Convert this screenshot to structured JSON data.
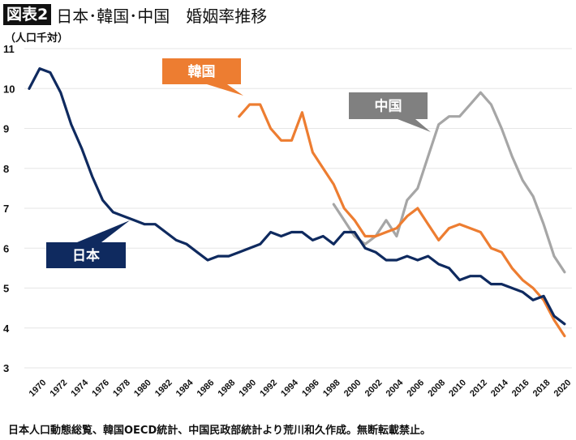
{
  "header": {
    "badge": "図表2",
    "title": "日本･韓国･中国　婚姻率推移"
  },
  "unit_label": "（人口千対）",
  "source": "日本人口動態総覧、韓国OECD統計、中国民政部統計より荒川和久作成。無断転載禁止。",
  "colors": {
    "japan": "#0f2a5f",
    "korea": "#ed7d31",
    "china": "#a6a6a6",
    "china_callout": "#808080",
    "grid": "#e6e6e6"
  },
  "chart_data": {
    "type": "line",
    "title": "日本･韓国･中国　婚姻率推移",
    "xlabel": "",
    "ylabel": "（人口千対）",
    "ylim": [
      3,
      11
    ],
    "yticks": [
      3,
      4,
      5,
      6,
      7,
      8,
      9,
      10,
      11
    ],
    "xlim": [
      1970,
      2021
    ],
    "xticks": [
      1970,
      1972,
      1974,
      1976,
      1978,
      1980,
      1982,
      1984,
      1986,
      1988,
      1990,
      1992,
      1994,
      1996,
      1998,
      2000,
      2002,
      2004,
      2006,
      2008,
      2010,
      2012,
      2014,
      2016,
      2018,
      2020
    ],
    "grid": true,
    "legend": "callouts",
    "series": [
      {
        "name": "日本",
        "key": "japan",
        "start_year": 1970,
        "values": [
          10.0,
          10.5,
          10.4,
          9.9,
          9.1,
          8.5,
          7.8,
          7.2,
          6.9,
          6.8,
          6.7,
          6.6,
          6.6,
          6.4,
          6.2,
          6.1,
          5.9,
          5.7,
          5.8,
          5.8,
          5.9,
          6.0,
          6.1,
          6.4,
          6.3,
          6.4,
          6.4,
          6.2,
          6.3,
          6.1,
          6.4,
          6.4,
          6.0,
          5.9,
          5.7,
          5.7,
          5.8,
          5.7,
          5.8,
          5.6,
          5.5,
          5.2,
          5.3,
          5.3,
          5.1,
          5.1,
          5.0,
          4.9,
          4.7,
          4.8,
          4.3,
          4.1
        ]
      },
      {
        "name": "韓国",
        "key": "korea",
        "start_year": 1990,
        "values": [
          9.3,
          9.6,
          9.6,
          9.0,
          8.7,
          8.7,
          9.4,
          8.4,
          8.0,
          7.6,
          7.0,
          6.7,
          6.3,
          6.3,
          6.4,
          6.5,
          6.8,
          7.0,
          6.6,
          6.2,
          6.5,
          6.6,
          6.5,
          6.4,
          6.0,
          5.9,
          5.5,
          5.2,
          5.0,
          4.7,
          4.2,
          3.8
        ]
      },
      {
        "name": "中国",
        "key": "china",
        "start_year": 1999,
        "values": [
          7.1,
          6.7,
          6.3,
          6.1,
          6.3,
          6.7,
          6.3,
          7.2,
          7.5,
          8.3,
          9.1,
          9.3,
          9.3,
          9.6,
          9.9,
          9.6,
          9.0,
          8.3,
          7.7,
          7.3,
          6.6,
          5.8,
          5.4
        ]
      }
    ]
  }
}
